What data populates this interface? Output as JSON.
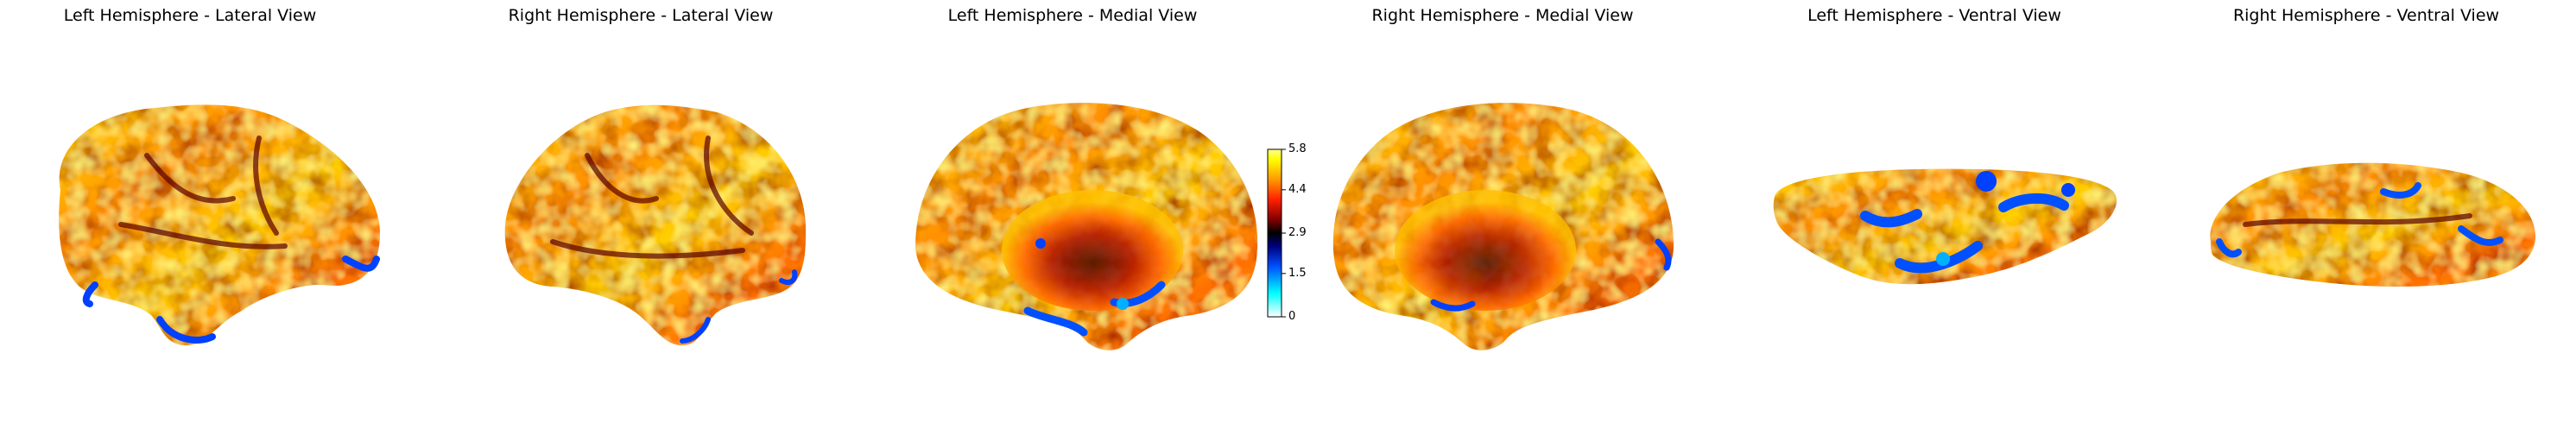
{
  "panels": [
    {
      "title": "Left Hemisphere - Lateral View",
      "hemisphere": "left",
      "view": "lateral"
    },
    {
      "title": "Right Hemisphere - Lateral View",
      "hemisphere": "right",
      "view": "lateral"
    },
    {
      "title": "Left Hemisphere - Medial View",
      "hemisphere": "left",
      "view": "medial"
    },
    {
      "title": "Right Hemisphere - Medial View",
      "hemisphere": "right",
      "view": "medial"
    },
    {
      "title": "Left Hemisphere - Ventral View",
      "hemisphere": "left",
      "view": "ventral"
    },
    {
      "title": "Right Hemisphere - Ventral View",
      "hemisphere": "right",
      "view": "ventral"
    }
  ],
  "colorbar": {
    "ticks": [
      "5.8",
      "4.4",
      "2.9",
      "1.5",
      "0"
    ],
    "min": 0,
    "max": 5.8,
    "colormap": [
      "#ffffff",
      "#00ffff",
      "#0050ff",
      "#000080",
      "#000000",
      "#800000",
      "#ff2000",
      "#ff9900",
      "#ffff00",
      "#ffff90"
    ]
  }
}
